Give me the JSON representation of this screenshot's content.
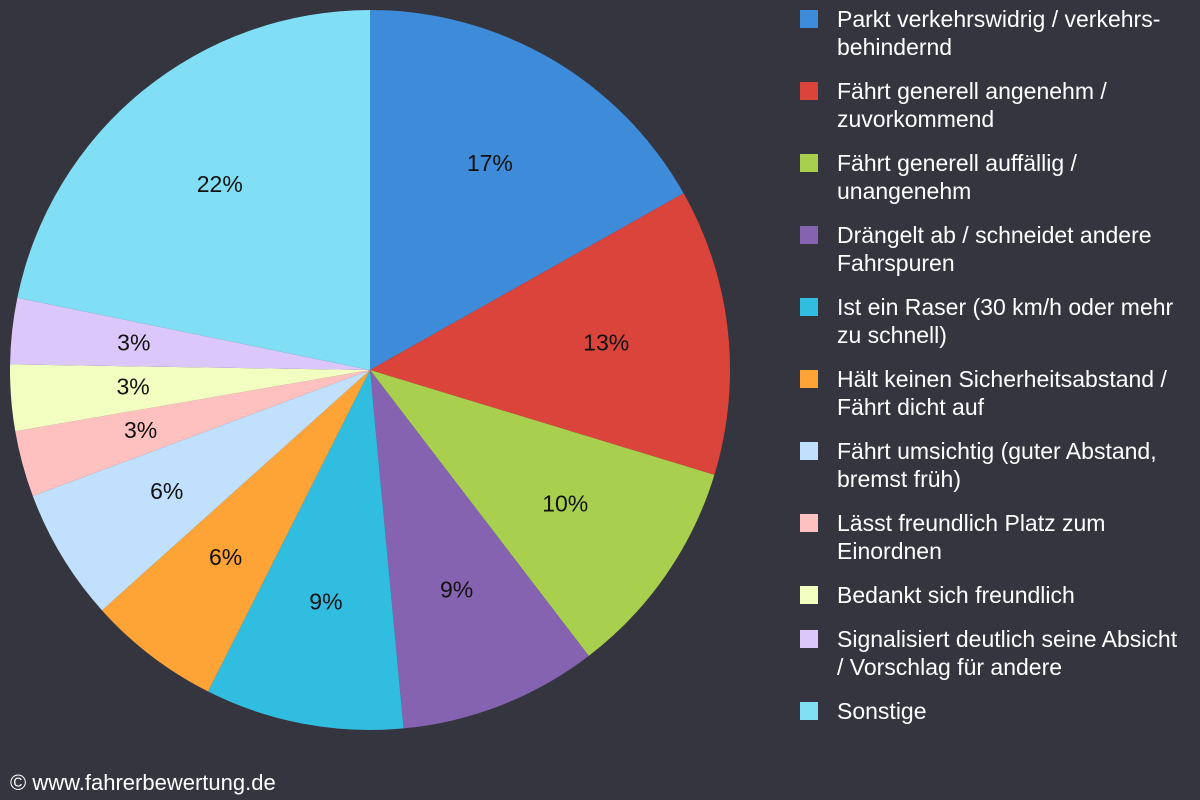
{
  "chart_data": {
    "type": "pie",
    "categories": [
      "Parkt verkehrswidrig / verkehrs-behindernd",
      "Fährt generell angenehm / zuvorkommend",
      "Fährt generell auffällig / unangenehm",
      "Drängelt ab / schneidet andere Fahrspuren",
      "Ist ein Raser (30 km/h oder mehr zu schnell)",
      "Hält keinen Sicherheitsabstand / Fährt dicht auf",
      "Fährt umsichtig (guter Abstand, bremst früh)",
      "Lässt freundlich Platz zum Einordnen",
      "Bedankt sich freundlich",
      "Signalisiert deutlich seine Absicht / Vorschlag für andere",
      "Sonstige"
    ],
    "values": [
      17,
      13,
      10,
      9,
      9,
      6,
      6,
      3,
      3,
      3,
      22
    ],
    "value_labels": [
      "17%",
      "13%",
      "10%",
      "9%",
      "9%",
      "6%",
      "6%",
      "3%",
      "3%",
      "3%",
      "22%"
    ],
    "colors": [
      "#3d8bd9",
      "#db443b",
      "#a8cf4d",
      "#8563b0",
      "#31bde0",
      "#fea335",
      "#c0e0fd",
      "#ffc0c0",
      "#f3ffc0",
      "#dbc7f9",
      "#80dff5"
    ],
    "legend": "right",
    "footer": "© www.fahrerbewertung.de"
  }
}
